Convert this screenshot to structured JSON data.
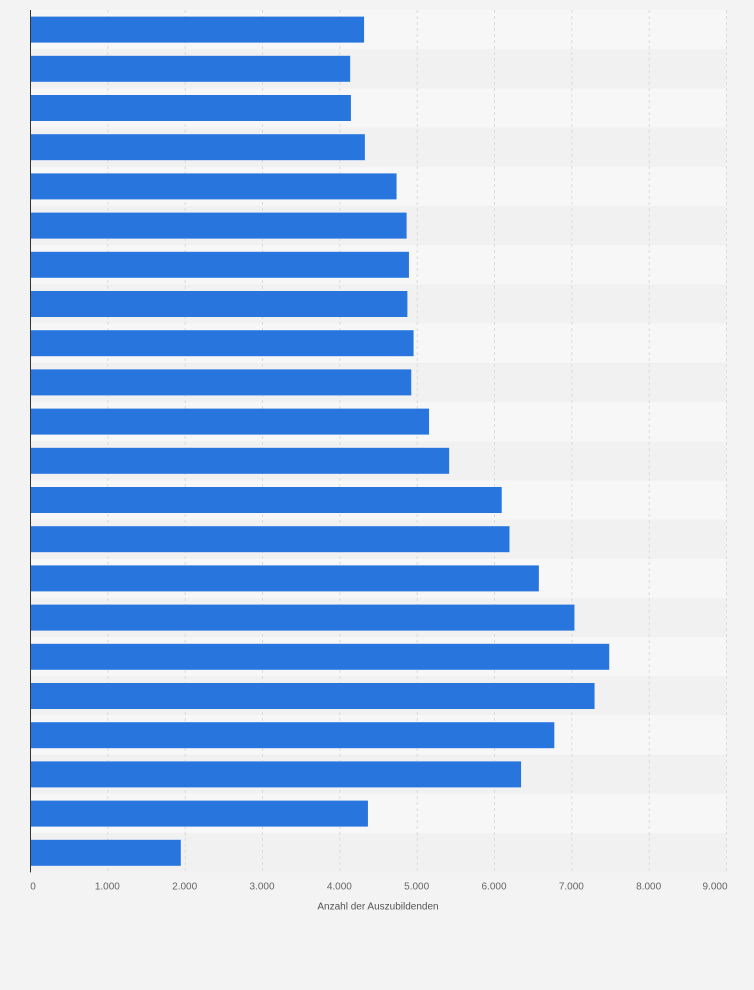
{
  "chart_data": {
    "type": "bar",
    "orientation": "horizontal",
    "title": "",
    "xlabel": "Anzahl der Auszubildenden",
    "ylabel": "",
    "categories": [
      "",
      "",
      "",
      "",
      "",
      "",
      "",
      "",
      "",
      "",
      "",
      "",
      "",
      "",
      "",
      "",
      "",
      "",
      "",
      "",
      "",
      ""
    ],
    "values": [
      4320,
      4140,
      4150,
      4330,
      4740,
      4870,
      4900,
      4880,
      4960,
      4930,
      5160,
      5420,
      6100,
      6200,
      6580,
      7040,
      7490,
      7300,
      6780,
      6350,
      4370,
      1950
    ],
    "xlim": [
      0,
      9000
    ],
    "xticks": [
      0,
      1000,
      2000,
      3000,
      4000,
      5000,
      6000,
      7000,
      8000,
      9000
    ],
    "xtick_labels": [
      "0",
      "1.000",
      "2.000",
      "3.000",
      "4.000",
      "5.000",
      "6.000",
      "7.000",
      "8.000",
      "9.000"
    ],
    "grid": true,
    "legend": "none",
    "colors": {
      "bar": "#2876dd",
      "background": "#f3f3f4",
      "band_light": "#f7f7f8",
      "band_dark": "#f1f1f2",
      "grid": "#dcdcdc"
    }
  }
}
